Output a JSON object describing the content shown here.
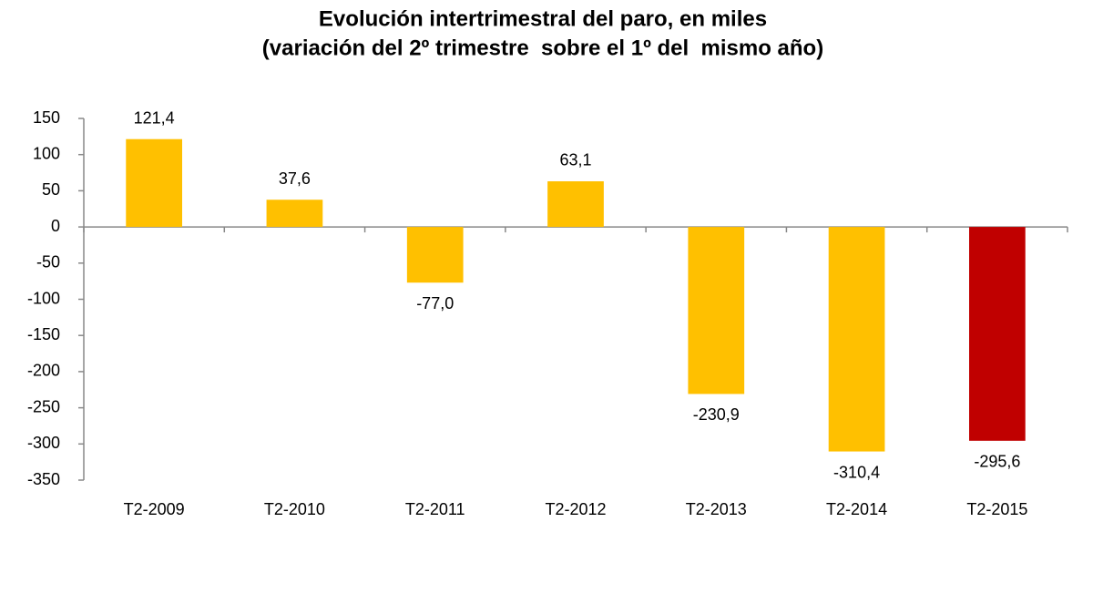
{
  "chart_data": {
    "type": "bar",
    "title": [
      "Evolución intertrimestral del paro, en miles",
      "(variación del 2º trimestre  sobre el 1º del  mismo año)"
    ],
    "categories": [
      "T2-2009",
      "T2-2010",
      "T2-2011",
      "T2-2012",
      "T2-2013",
      "T2-2014",
      "T2-2015"
    ],
    "values": [
      121.4,
      37.6,
      -77.0,
      63.1,
      -230.9,
      -310.4,
      -295.6
    ],
    "value_labels": [
      "121,4",
      "37,6",
      "-77,0",
      "63,1",
      "-230,9",
      "-310,4",
      "-295,6"
    ],
    "colors": [
      "#FFC000",
      "#FFC000",
      "#FFC000",
      "#FFC000",
      "#FFC000",
      "#FFC000",
      "#C00000"
    ],
    "ylim": [
      -350,
      150
    ],
    "yticks": [
      -350,
      -300,
      -250,
      -200,
      -150,
      -100,
      -50,
      0,
      50,
      100,
      150
    ],
    "grid": false
  }
}
